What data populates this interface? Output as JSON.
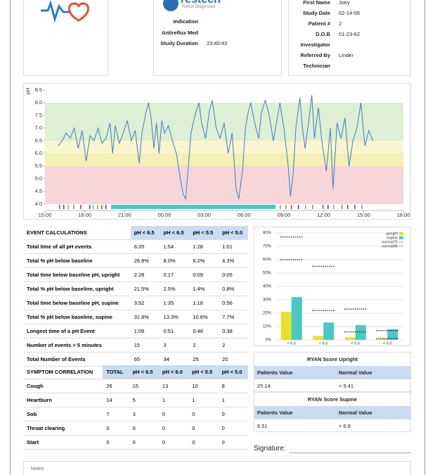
{
  "company": {
    "name": "restech",
    "tagline": "Reflux Diagnosed",
    "rows": [
      {
        "label": "Indication"
      },
      {
        "label": "Antireflux Med"
      },
      {
        "label": "Study Duration",
        "value": "23:40:43"
      }
    ]
  },
  "patient_info": {
    "rows": [
      {
        "label": "First Name",
        "value": "Joey"
      },
      {
        "label": "Study Date",
        "value": "02-14-06"
      },
      {
        "label": "Patient #",
        "value": "2"
      },
      {
        "label": "D.O.B",
        "value": "01-23-62"
      },
      {
        "label": "Investigator"
      },
      {
        "label": "Referred By",
        "value": "Linder"
      },
      {
        "label": "Technician"
      }
    ]
  },
  "chart_data": [
    {
      "type": "line",
      "y_label": "pH",
      "color": "#3d7bbf",
      "bands": [
        {
          "from": 4,
          "to": 5.5,
          "color": "#f7d6da"
        },
        {
          "from": 5.5,
          "to": 6,
          "color": "#f4efb5"
        },
        {
          "from": 6,
          "to": 6.5,
          "color": "#f9f6cf"
        },
        {
          "from": 6.5,
          "to": 8,
          "color": "#ddefd4"
        }
      ],
      "xlim": [
        0,
        27
      ],
      "xticks": [
        {
          "value": 0,
          "label": "15:00"
        },
        {
          "value": 3,
          "label": "18:00"
        },
        {
          "value": 6,
          "label": "21:00"
        },
        {
          "value": 9,
          "label": "00:00"
        },
        {
          "value": 12,
          "label": "03:00"
        },
        {
          "value": 15,
          "label": "06:00"
        },
        {
          "value": 18,
          "label": "09:00"
        },
        {
          "value": 21,
          "label": "12:00"
        },
        {
          "value": 24,
          "label": "15:00"
        },
        {
          "value": 27,
          "label": "18:00"
        }
      ],
      "ylim": [
        4,
        8.5
      ],
      "yticks": [
        {
          "value": 4,
          "label": "4.0"
        },
        4.5,
        {
          "value": 5,
          "label": "5.0"
        },
        5.5,
        {
          "value": 6,
          "label": "6.0"
        },
        6.5,
        {
          "value": 7,
          "label": "7.0"
        },
        7.5,
        {
          "value": 8,
          "label": "8.0"
        },
        8.5
      ],
      "x": [
        1.0,
        1.3,
        1.6,
        1.9,
        2.2,
        2.5,
        2.8,
        3.1,
        3.4,
        3.7,
        4.0,
        4.3,
        4.6,
        4.9,
        5.1,
        5.3,
        5.6,
        5.9,
        6.2,
        6.5,
        6.8,
        7.1,
        7.3,
        7.6,
        7.8,
        8.0,
        8.2,
        8.4,
        8.6,
        8.8,
        9.0,
        9.3,
        9.6,
        9.9,
        10.2,
        10.4,
        10.6,
        10.8,
        11.0,
        11.3,
        11.6,
        11.8,
        12.1,
        12.4,
        12.6,
        12.9,
        13.2,
        13.5,
        13.8,
        14.1,
        14.4,
        14.6,
        14.9,
        15.1,
        15.3,
        15.5,
        15.8,
        16.1,
        16.3,
        16.6,
        16.9,
        17.2,
        17.5,
        17.7,
        18.0,
        18.3,
        18.5,
        18.7,
        18.9,
        19.2,
        19.4,
        19.6,
        19.9,
        20.1,
        20.3,
        20.6,
        20.9,
        21.2,
        21.5,
        21.7,
        22.0,
        22.3,
        22.6,
        22.9,
        23.2,
        23.5,
        23.8,
        24.1,
        24.4,
        24.7
      ],
      "values": [
        6.3,
        6.5,
        6.8,
        6.6,
        7.0,
        6.2,
        6.9,
        5.7,
        6.7,
        6.5,
        7.0,
        6.4,
        6.6,
        7.2,
        6.0,
        7.1,
        6.4,
        6.8,
        7.3,
        6.5,
        6.9,
        5.6,
        6.8,
        7.6,
        8.0,
        7.4,
        6.2,
        7.2,
        6.0,
        7.3,
        6.8,
        7.1,
        6.5,
        6.0,
        5.0,
        4.4,
        4.2,
        5.5,
        6.8,
        7.5,
        8.0,
        7.2,
        6.6,
        7.7,
        8.1,
        7.0,
        6.6,
        7.2,
        6.0,
        6.8,
        4.6,
        4.2,
        5.4,
        7.0,
        7.6,
        8.0,
        7.2,
        6.6,
        7.6,
        8.1,
        7.5,
        6.5,
        7.4,
        8.0,
        7.0,
        5.6,
        4.3,
        5.2,
        7.0,
        8.2,
        7.0,
        6.2,
        7.4,
        8.3,
        6.6,
        7.8,
        6.3,
        5.3,
        7.0,
        4.6,
        7.2,
        6.6,
        7.4,
        5.5,
        6.5,
        7.0,
        8.0,
        6.3,
        6.9,
        6.5
      ]
    },
    {
      "type": "bar",
      "categories": [
        "< 6.5",
        "< 6.0",
        "< 5.5",
        "< 5.0"
      ],
      "ylim": [
        0,
        80
      ],
      "yticks": [
        {
          "value": 0,
          "label": "0%"
        },
        {
          "value": 10,
          "label": "10%"
        },
        {
          "value": 20,
          "label": "20%"
        },
        {
          "value": 30,
          "label": "30%"
        },
        {
          "value": 40,
          "label": "40%"
        },
        {
          "value": 50,
          "label": "50%"
        },
        {
          "value": 60,
          "label": "60%"
        },
        {
          "value": 70,
          "label": "70%"
        },
        {
          "value": 80,
          "label": "80%"
        }
      ],
      "series": [
        {
          "name": "upright",
          "color": "#e6e02a",
          "values": [
            21,
            3,
            2,
            1
          ]
        },
        {
          "name": "supine",
          "color": "#4cc7c4",
          "values": [
            32,
            13,
            11,
            8
          ]
        },
        {
          "name": "normal75",
          "color": "#333333",
          "style": "dotted",
          "values": [
            60,
            22,
            6,
            1
          ]
        },
        {
          "name": "normal95",
          "color": "#333333",
          "style": "dotted",
          "values": [
            77,
            55,
            23,
            7
          ]
        }
      ]
    }
  ],
  "event_table": {
    "header": [
      "EVENT CALCULATIONS",
      "pH < 6.5",
      "pH < 6.0",
      "pH < 5.5",
      "pH < 5.0"
    ],
    "rows": [
      [
        "Total time of all pH events",
        "6:20",
        "1:54",
        "1:28",
        "1:01"
      ],
      [
        "Total % pH below baseline",
        "28.8%",
        "8.0%",
        "6.2%",
        "4.3%"
      ],
      [
        "Total time below baseline pH, upright",
        "2:28",
        "0:17",
        "0:09",
        "0:05"
      ],
      [
        "Total % pH below baseline, upright",
        "21.5%",
        "2.5%",
        "1.4%",
        "0.8%"
      ],
      [
        "Total time below baseline pH, supine",
        "3:52",
        "1:35",
        "1:18",
        "0:56"
      ],
      [
        "Total % pH below baseline, supine",
        "31.8%",
        "13.3%",
        "10.6%",
        "7.7%"
      ],
      [
        "Longest time of a pH Event",
        "1:09",
        "0:51",
        "0:48",
        "0:38"
      ],
      [
        "Number of events > 5 minutes",
        "15",
        "3",
        "2",
        "2"
      ],
      [
        "Total Number of Events",
        "65",
        "34",
        "25",
        "20"
      ]
    ]
  },
  "symptom_table": {
    "header": [
      "SYMPTOM CORRELATION",
      "TOTAL",
      "pH < 6.5",
      "pH < 6.0",
      "pH < 5.5",
      "pH < 5.0"
    ],
    "rows": [
      [
        "Cough",
        "26",
        "15",
        "13",
        "10",
        "8"
      ],
      [
        "Heartburn",
        "14",
        "5",
        "1",
        "1",
        "1"
      ],
      [
        "Sob",
        "7",
        "3",
        "0",
        "0",
        "0"
      ],
      [
        "Throat clearing",
        "0",
        "0",
        "0",
        "0",
        "0"
      ],
      [
        "Start",
        "0",
        "0",
        "0",
        "0",
        "0"
      ]
    ]
  },
  "ryan": [
    {
      "title": "RYAN Score Upright",
      "header": [
        "Patients Value",
        "Normal Value"
      ],
      "row": [
        "25.14",
        "< 9.41"
      ]
    },
    {
      "title": "RYAN Score Supine",
      "header": [
        "Patients Value",
        "Normal Value"
      ],
      "row": [
        "8.51",
        "< 6.8"
      ]
    }
  ],
  "signature": {
    "label": "Signature:"
  },
  "notes": {
    "label": "Notes"
  }
}
